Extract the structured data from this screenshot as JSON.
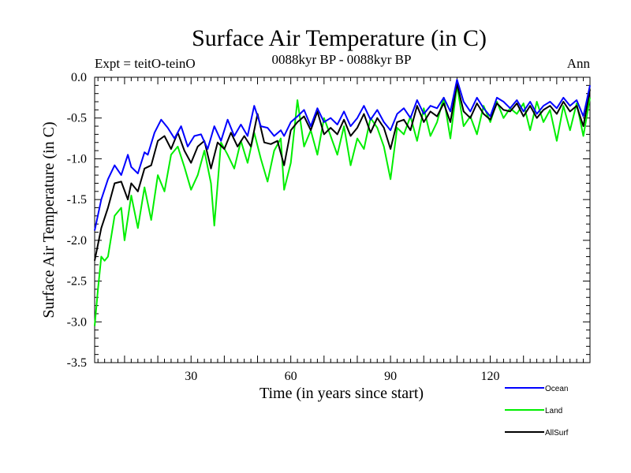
{
  "chart_data": {
    "type": "line",
    "title": "Surface Air Temperature (in C)",
    "subtitle": "0088kyr BP - 0088kyr BP",
    "left_label": "Expt = teitO-teinO",
    "right_label": "Ann",
    "xlabel": "Time (in years since start)",
    "ylabel": "Surface Air Temperature (in C)",
    "xlim": [
      1,
      150
    ],
    "ylim": [
      -3.5,
      0.0
    ],
    "xticks": [
      30,
      60,
      90,
      120
    ],
    "yticks": [
      0.0,
      -0.5,
      -1.0,
      -1.5,
      -2.0,
      -2.5,
      -3.0,
      -3.5
    ],
    "ytick_labels": [
      "0.0",
      "-0.5",
      "-1.0",
      "-1.5",
      "-2.0",
      "-2.5",
      "-3.0",
      "-3.5"
    ],
    "legend_position": "bottom-right outside",
    "series": [
      {
        "name": "Ocean",
        "color": "#0000ff",
        "x": [
          1,
          3,
          5,
          7,
          9,
          11,
          12,
          14,
          16,
          17,
          19,
          21,
          23,
          25,
          27,
          29,
          31,
          33,
          35,
          37,
          39,
          41,
          43,
          45,
          47,
          49,
          51,
          53,
          55,
          57,
          58,
          60,
          62,
          64,
          66,
          68,
          70,
          72,
          74,
          76,
          78,
          80,
          82,
          84,
          86,
          88,
          90,
          92,
          94,
          96,
          98,
          100,
          102,
          104,
          106,
          108,
          110,
          112,
          114,
          116,
          118,
          120,
          122,
          124,
          126,
          128,
          130,
          132,
          134,
          136,
          138,
          140,
          142,
          144,
          146,
          148,
          150
        ],
        "values": [
          -1.88,
          -1.5,
          -1.25,
          -1.08,
          -1.2,
          -0.95,
          -1.1,
          -1.18,
          -0.92,
          -0.95,
          -0.68,
          -0.52,
          -0.62,
          -0.75,
          -0.6,
          -0.85,
          -0.72,
          -0.7,
          -0.88,
          -0.6,
          -0.78,
          -0.52,
          -0.72,
          -0.58,
          -0.72,
          -0.35,
          -0.6,
          -0.62,
          -0.72,
          -0.65,
          -0.72,
          -0.55,
          -0.48,
          -0.4,
          -0.6,
          -0.38,
          -0.55,
          -0.5,
          -0.58,
          -0.42,
          -0.6,
          -0.5,
          -0.35,
          -0.52,
          -0.4,
          -0.55,
          -0.65,
          -0.45,
          -0.38,
          -0.5,
          -0.28,
          -0.45,
          -0.35,
          -0.38,
          -0.25,
          -0.42,
          -0.03,
          -0.3,
          -0.42,
          -0.25,
          -0.38,
          -0.48,
          -0.25,
          -0.3,
          -0.38,
          -0.28,
          -0.42,
          -0.3,
          -0.45,
          -0.35,
          -0.3,
          -0.38,
          -0.25,
          -0.35,
          -0.28,
          -0.48,
          -0.1
        ]
      },
      {
        "name": "Land",
        "color": "#00ee00",
        "x": [
          1,
          2,
          3,
          4,
          5,
          7,
          9,
          10,
          12,
          14,
          16,
          18,
          20,
          22,
          24,
          26,
          28,
          30,
          32,
          34,
          36,
          37,
          39,
          41,
          43,
          45,
          47,
          49,
          51,
          53,
          55,
          57,
          58,
          60,
          62,
          64,
          66,
          68,
          70,
          72,
          74,
          76,
          78,
          80,
          82,
          84,
          86,
          88,
          90,
          92,
          94,
          96,
          98,
          100,
          102,
          104,
          106,
          108,
          110,
          112,
          114,
          116,
          118,
          120,
          122,
          124,
          126,
          128,
          130,
          132,
          134,
          136,
          138,
          140,
          142,
          144,
          146,
          148,
          150
        ],
        "values": [
          -3.05,
          -2.6,
          -2.2,
          -2.25,
          -2.2,
          -1.7,
          -1.6,
          -2.0,
          -1.45,
          -1.85,
          -1.35,
          -1.75,
          -1.2,
          -1.4,
          -0.95,
          -0.85,
          -1.1,
          -1.38,
          -1.2,
          -0.9,
          -1.3,
          -1.82,
          -0.8,
          -0.95,
          -1.12,
          -0.78,
          -1.05,
          -0.68,
          -1.0,
          -1.28,
          -0.9,
          -0.75,
          -1.38,
          -1.05,
          -0.28,
          -0.85,
          -0.65,
          -0.95,
          -0.5,
          -0.72,
          -0.95,
          -0.6,
          -1.08,
          -0.75,
          -0.88,
          -0.5,
          -0.62,
          -0.85,
          -1.25,
          -0.62,
          -0.7,
          -0.48,
          -0.78,
          -0.38,
          -0.72,
          -0.55,
          -0.25,
          -0.75,
          -0.1,
          -0.6,
          -0.48,
          -0.7,
          -0.35,
          -0.55,
          -0.3,
          -0.5,
          -0.38,
          -0.45,
          -0.32,
          -0.65,
          -0.3,
          -0.55,
          -0.4,
          -0.78,
          -0.35,
          -0.65,
          -0.32,
          -0.72,
          -0.25
        ]
      },
      {
        "name": "AllSurf",
        "color": "#000000",
        "x": [
          1,
          3,
          5,
          7,
          9,
          11,
          12,
          14,
          16,
          18,
          20,
          22,
          24,
          26,
          28,
          30,
          32,
          34,
          36,
          38,
          40,
          42,
          44,
          46,
          48,
          50,
          52,
          54,
          56,
          58,
          60,
          62,
          64,
          66,
          68,
          70,
          72,
          74,
          76,
          78,
          80,
          82,
          84,
          86,
          88,
          90,
          92,
          94,
          96,
          98,
          100,
          102,
          104,
          106,
          108,
          110,
          112,
          114,
          116,
          118,
          120,
          122,
          124,
          126,
          128,
          130,
          132,
          134,
          136,
          138,
          140,
          142,
          144,
          146,
          148,
          150
        ],
        "values": [
          -2.25,
          -1.85,
          -1.6,
          -1.3,
          -1.28,
          -1.5,
          -1.3,
          -1.4,
          -1.12,
          -1.08,
          -0.78,
          -0.72,
          -0.88,
          -0.68,
          -0.9,
          -1.05,
          -0.85,
          -0.78,
          -1.12,
          -0.8,
          -0.88,
          -0.68,
          -0.85,
          -0.72,
          -0.85,
          -0.45,
          -0.8,
          -0.82,
          -0.78,
          -1.08,
          -0.65,
          -0.55,
          -0.48,
          -0.65,
          -0.42,
          -0.7,
          -0.62,
          -0.7,
          -0.52,
          -0.72,
          -0.62,
          -0.45,
          -0.68,
          -0.5,
          -0.62,
          -0.88,
          -0.55,
          -0.52,
          -0.65,
          -0.35,
          -0.55,
          -0.42,
          -0.48,
          -0.32,
          -0.55,
          -0.08,
          -0.42,
          -0.5,
          -0.32,
          -0.45,
          -0.52,
          -0.32,
          -0.4,
          -0.42,
          -0.32,
          -0.48,
          -0.35,
          -0.5,
          -0.4,
          -0.35,
          -0.45,
          -0.3,
          -0.42,
          -0.35,
          -0.6,
          -0.15
        ]
      }
    ]
  }
}
